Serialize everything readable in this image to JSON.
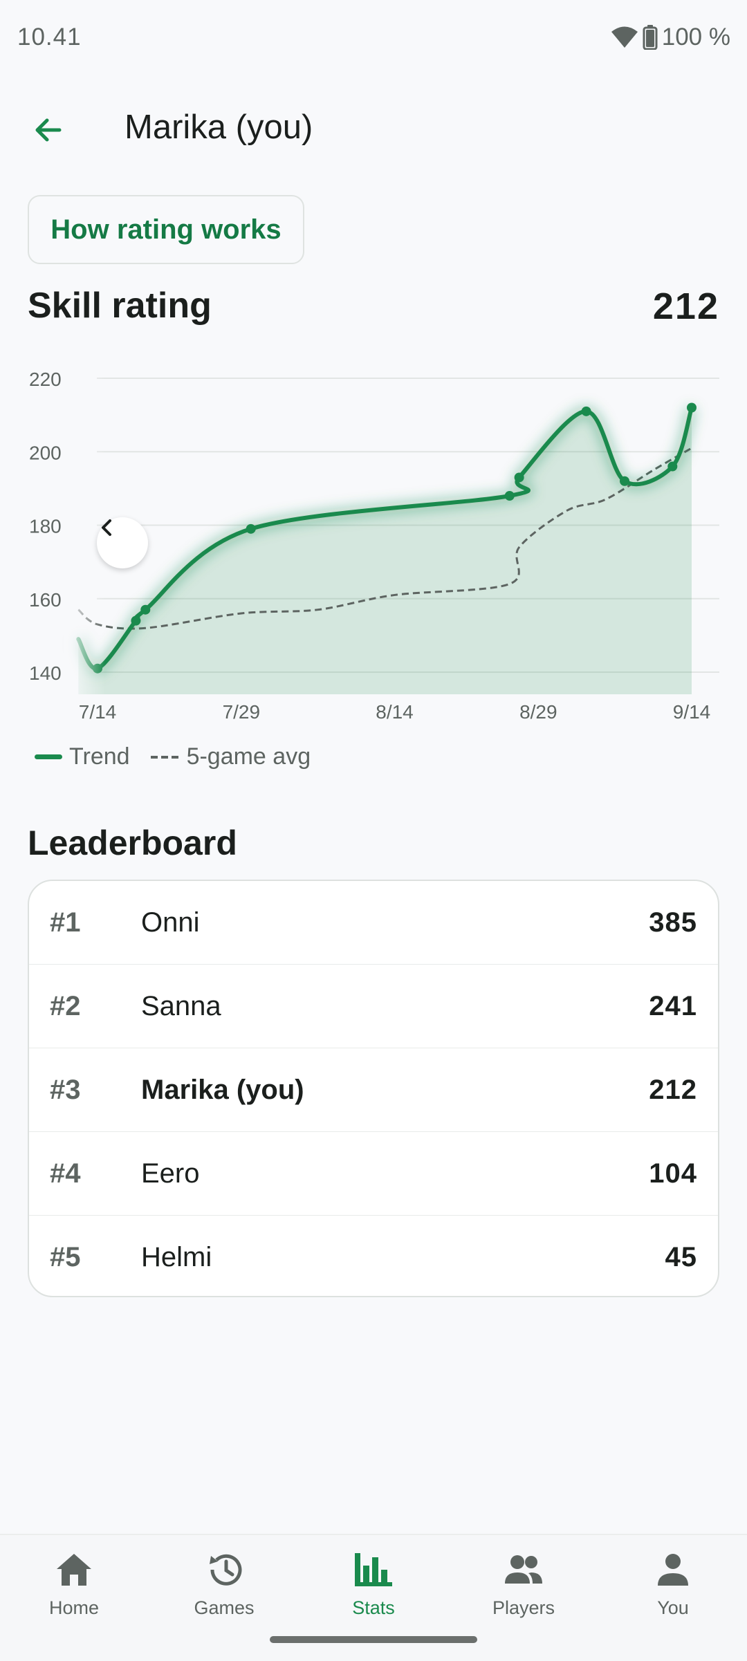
{
  "status_bar": {
    "time": "10.41",
    "battery": "100 %",
    "icons": [
      "wifi-icon",
      "battery-icon"
    ]
  },
  "header": {
    "title": "Marika (you)",
    "back_icon": "arrow-left-icon"
  },
  "how_rating_button": {
    "label": "How rating works"
  },
  "skill": {
    "label": "Skill rating",
    "value": "212"
  },
  "chart_data": {
    "type": "line",
    "x_tick_labels": [
      "7/14",
      "7/29",
      "8/14",
      "8/29",
      "9/14"
    ],
    "y_ticks": [
      140,
      160,
      180,
      200,
      220
    ],
    "ylim": [
      134,
      224
    ],
    "grid": true,
    "legend_position": "bottom-left",
    "series": [
      {
        "name": "Trend",
        "color": "#1a8a4d",
        "points": [
          {
            "x": "7/12",
            "y": 149
          },
          {
            "x": "7/14",
            "y": 141
          },
          {
            "x": "7/18",
            "y": 154
          },
          {
            "x": "7/19",
            "y": 157
          },
          {
            "x": "7/30",
            "y": 179
          },
          {
            "x": "8/26",
            "y": 188
          },
          {
            "x": "8/27",
            "y": 193
          },
          {
            "x": "9/3",
            "y": 211
          },
          {
            "x": "9/7",
            "y": 192
          },
          {
            "x": "9/12",
            "y": 196
          },
          {
            "x": "9/14",
            "y": 212
          }
        ]
      },
      {
        "name": "5-game avg",
        "color": "#5d6461",
        "points": [
          {
            "x": "7/12",
            "y": 157
          },
          {
            "x": "7/14",
            "y": 153
          },
          {
            "x": "7/19",
            "y": 152
          },
          {
            "x": "7/29",
            "y": 156
          },
          {
            "x": "8/6",
            "y": 157
          },
          {
            "x": "8/14",
            "y": 161
          },
          {
            "x": "8/26",
            "y": 164
          },
          {
            "x": "8/27",
            "y": 174
          },
          {
            "x": "9/1",
            "y": 184
          },
          {
            "x": "9/5",
            "y": 187
          },
          {
            "x": "9/10",
            "y": 195
          },
          {
            "x": "9/14",
            "y": 201
          }
        ]
      }
    ]
  },
  "legend": {
    "trend": "Trend",
    "avg": "5-game avg"
  },
  "leaderboard": {
    "title": "Leaderboard",
    "rows": [
      {
        "rank": "#1",
        "name": "Onni",
        "score": "385"
      },
      {
        "rank": "#2",
        "name": "Sanna",
        "score": "241"
      },
      {
        "rank": "#3",
        "name": "Marika (you)",
        "score": "212"
      },
      {
        "rank": "#4",
        "name": "Eero",
        "score": "104"
      },
      {
        "rank": "#5",
        "name": "Helmi",
        "score": "45"
      }
    ]
  },
  "bottom_nav": {
    "active": "Stats",
    "items": [
      {
        "label": "Home",
        "icon": "home-icon"
      },
      {
        "label": "Games",
        "icon": "history-icon"
      },
      {
        "label": "Stats",
        "icon": "bar-chart-icon"
      },
      {
        "label": "Players",
        "icon": "people-icon"
      },
      {
        "label": "You",
        "icon": "person-icon"
      }
    ]
  },
  "colors": {
    "accent": "#1a8a4d",
    "text": "#1b1f1d",
    "muted": "#5d6461",
    "background": "#f8f9fb"
  }
}
